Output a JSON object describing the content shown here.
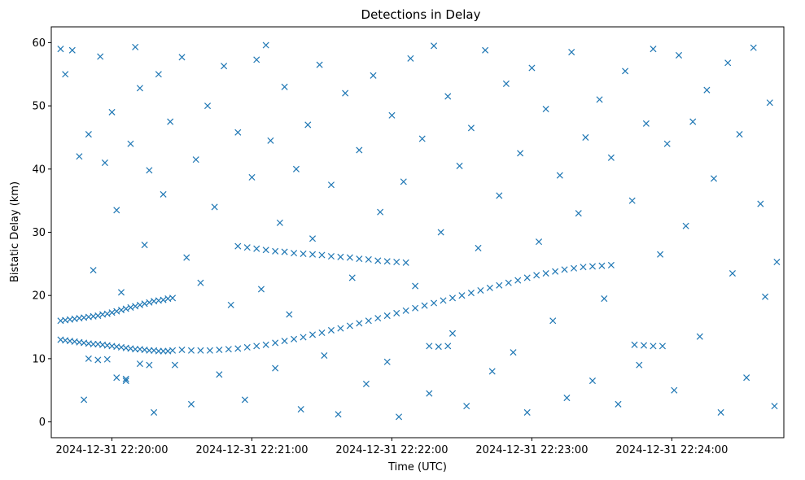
{
  "chart_data": {
    "type": "scatter",
    "title": "Detections in Delay",
    "xlabel": "Time (UTC)",
    "ylabel": "Bistatic Delay (km)",
    "x_unit": "time-of-day",
    "xlim": [
      "22:19:34",
      "22:24:48"
    ],
    "ylim": [
      -2.5,
      62.5
    ],
    "x_ticks": [
      {
        "value": "22:20:00",
        "label": "2024-12-31 22:20:00"
      },
      {
        "value": "22:21:00",
        "label": "2024-12-31 22:21:00"
      },
      {
        "value": "22:22:00",
        "label": "2024-12-31 22:22:00"
      },
      {
        "value": "22:23:00",
        "label": "2024-12-31 22:23:00"
      },
      {
        "value": "22:24:00",
        "label": "2024-12-31 22:24:00"
      }
    ],
    "y_ticks": [
      0,
      10,
      20,
      30,
      40,
      50,
      60
    ],
    "grid": false,
    "legend": "none",
    "marker": "x",
    "color": "#1f77b4",
    "series": [
      {
        "points": [
          [
            "22:19:38",
            13.0
          ],
          [
            "22:19:40",
            12.9
          ],
          [
            "22:19:42",
            12.8
          ],
          [
            "22:19:44",
            12.7
          ],
          [
            "22:19:46",
            12.6
          ],
          [
            "22:19:48",
            12.5
          ],
          [
            "22:19:50",
            12.4
          ],
          [
            "22:19:52",
            12.3
          ],
          [
            "22:19:54",
            12.3
          ],
          [
            "22:19:56",
            12.2
          ],
          [
            "22:19:58",
            12.1
          ],
          [
            "22:20:00",
            12.0
          ],
          [
            "22:20:02",
            11.9
          ],
          [
            "22:20:04",
            11.8
          ],
          [
            "22:20:06",
            11.7
          ],
          [
            "22:20:08",
            11.6
          ],
          [
            "22:20:10",
            11.5
          ],
          [
            "22:20:12",
            11.5
          ],
          [
            "22:20:14",
            11.4
          ],
          [
            "22:20:16",
            11.3
          ],
          [
            "22:20:18",
            11.3
          ],
          [
            "22:20:20",
            11.2
          ],
          [
            "22:20:22",
            11.2
          ],
          [
            "22:20:24",
            11.2
          ],
          [
            "22:20:26",
            11.3
          ],
          [
            "22:19:38",
            16.0
          ],
          [
            "22:19:40",
            16.1
          ],
          [
            "22:19:42",
            16.2
          ],
          [
            "22:19:44",
            16.3
          ],
          [
            "22:19:46",
            16.4
          ],
          [
            "22:19:48",
            16.5
          ],
          [
            "22:19:50",
            16.6
          ],
          [
            "22:19:52",
            16.7
          ],
          [
            "22:19:54",
            16.8
          ],
          [
            "22:19:56",
            17.0
          ],
          [
            "22:19:58",
            17.1
          ],
          [
            "22:20:00",
            17.3
          ],
          [
            "22:20:02",
            17.5
          ],
          [
            "22:20:04",
            17.7
          ],
          [
            "22:20:06",
            17.9
          ],
          [
            "22:20:08",
            18.1
          ],
          [
            "22:20:10",
            18.3
          ],
          [
            "22:20:12",
            18.5
          ],
          [
            "22:20:14",
            18.7
          ],
          [
            "22:20:16",
            18.9
          ],
          [
            "22:20:18",
            19.1
          ],
          [
            "22:20:20",
            19.2
          ],
          [
            "22:20:22",
            19.3
          ],
          [
            "22:20:24",
            19.5
          ],
          [
            "22:20:26",
            19.6
          ],
          [
            "22:20:30",
            11.4
          ],
          [
            "22:20:34",
            11.3
          ],
          [
            "22:20:38",
            11.3
          ],
          [
            "22:20:42",
            11.3
          ],
          [
            "22:20:46",
            11.4
          ],
          [
            "22:20:50",
            11.5
          ],
          [
            "22:20:54",
            11.6
          ],
          [
            "22:20:58",
            11.8
          ],
          [
            "22:21:02",
            12.0
          ],
          [
            "22:21:06",
            12.2
          ],
          [
            "22:21:10",
            12.5
          ],
          [
            "22:21:14",
            12.8
          ],
          [
            "22:21:18",
            13.1
          ],
          [
            "22:21:22",
            13.4
          ],
          [
            "22:21:26",
            13.8
          ],
          [
            "22:21:30",
            14.1
          ],
          [
            "22:21:34",
            14.5
          ],
          [
            "22:21:38",
            14.8
          ],
          [
            "22:21:42",
            15.2
          ],
          [
            "22:21:46",
            15.6
          ],
          [
            "22:21:50",
            16.0
          ],
          [
            "22:21:54",
            16.4
          ],
          [
            "22:21:58",
            16.8
          ],
          [
            "22:22:02",
            17.2
          ],
          [
            "22:22:06",
            17.6
          ],
          [
            "22:22:10",
            18.0
          ],
          [
            "22:22:14",
            18.4
          ],
          [
            "22:22:18",
            18.8
          ],
          [
            "22:22:22",
            19.2
          ],
          [
            "22:22:26",
            19.6
          ],
          [
            "22:22:30",
            20.0
          ],
          [
            "22:22:34",
            20.4
          ],
          [
            "22:22:38",
            20.8
          ],
          [
            "22:22:42",
            21.2
          ],
          [
            "22:22:46",
            21.6
          ],
          [
            "22:22:50",
            22.0
          ],
          [
            "22:22:54",
            22.4
          ],
          [
            "22:22:58",
            22.8
          ],
          [
            "22:23:02",
            23.2
          ],
          [
            "22:23:06",
            23.5
          ],
          [
            "22:23:10",
            23.8
          ],
          [
            "22:23:14",
            24.1
          ],
          [
            "22:23:18",
            24.3
          ],
          [
            "22:23:22",
            24.5
          ],
          [
            "22:23:26",
            24.6
          ],
          [
            "22:23:30",
            24.7
          ],
          [
            "22:23:34",
            24.8
          ],
          [
            "22:20:54",
            27.8
          ],
          [
            "22:20:58",
            27.6
          ],
          [
            "22:21:02",
            27.4
          ],
          [
            "22:21:06",
            27.2
          ],
          [
            "22:21:10",
            27.0
          ],
          [
            "22:21:14",
            26.9
          ],
          [
            "22:21:18",
            26.7
          ],
          [
            "22:21:22",
            26.6
          ],
          [
            "22:21:26",
            26.5
          ],
          [
            "22:21:30",
            26.4
          ],
          [
            "22:21:34",
            26.2
          ],
          [
            "22:21:38",
            26.1
          ],
          [
            "22:21:42",
            26.0
          ],
          [
            "22:21:46",
            25.8
          ],
          [
            "22:21:50",
            25.7
          ],
          [
            "22:21:54",
            25.5
          ],
          [
            "22:21:58",
            25.4
          ],
          [
            "22:22:02",
            25.3
          ],
          [
            "22:22:06",
            25.2
          ],
          [
            "22:19:50",
            10.0
          ],
          [
            "22:19:54",
            9.8
          ],
          [
            "22:19:58",
            9.9
          ],
          [
            "22:20:02",
            7.0
          ],
          [
            "22:20:06",
            6.5
          ],
          [
            "22:20:12",
            9.2
          ],
          [
            "22:20:16",
            9.0
          ],
          [
            "22:22:16",
            12.0
          ],
          [
            "22:22:20",
            11.9
          ],
          [
            "22:22:24",
            12.0
          ],
          [
            "22:23:44",
            12.2
          ],
          [
            "22:23:48",
            12.1
          ],
          [
            "22:23:52",
            12.0
          ],
          [
            "22:23:56",
            12.0
          ],
          [
            "22:19:38",
            59.0
          ],
          [
            "22:19:40",
            55.0
          ],
          [
            "22:19:43",
            58.8
          ],
          [
            "22:19:46",
            42.0
          ],
          [
            "22:19:48",
            3.5
          ],
          [
            "22:19:50",
            45.5
          ],
          [
            "22:19:52",
            24.0
          ],
          [
            "22:19:55",
            57.8
          ],
          [
            "22:19:57",
            41.0
          ],
          [
            "22:20:00",
            49.0
          ],
          [
            "22:20:02",
            33.5
          ],
          [
            "22:20:04",
            20.5
          ],
          [
            "22:20:06",
            6.8
          ],
          [
            "22:20:08",
            44.0
          ],
          [
            "22:20:10",
            59.3
          ],
          [
            "22:20:12",
            52.8
          ],
          [
            "22:20:14",
            28.0
          ],
          [
            "22:20:16",
            39.8
          ],
          [
            "22:20:18",
            1.5
          ],
          [
            "22:20:20",
            55.0
          ],
          [
            "22:20:22",
            36.0
          ],
          [
            "22:20:25",
            47.5
          ],
          [
            "22:20:27",
            9.0
          ],
          [
            "22:20:30",
            57.7
          ],
          [
            "22:20:32",
            26.0
          ],
          [
            "22:20:34",
            2.8
          ],
          [
            "22:20:36",
            41.5
          ],
          [
            "22:20:38",
            22.0
          ],
          [
            "22:20:41",
            50.0
          ],
          [
            "22:20:44",
            34.0
          ],
          [
            "22:20:46",
            7.5
          ],
          [
            "22:20:48",
            56.3
          ],
          [
            "22:20:51",
            18.5
          ],
          [
            "22:20:54",
            45.8
          ],
          [
            "22:20:57",
            3.5
          ],
          [
            "22:21:00",
            38.7
          ],
          [
            "22:21:02",
            57.3
          ],
          [
            "22:21:04",
            21.0
          ],
          [
            "22:21:06",
            59.6
          ],
          [
            "22:21:08",
            44.5
          ],
          [
            "22:21:10",
            8.5
          ],
          [
            "22:21:12",
            31.5
          ],
          [
            "22:21:14",
            53.0
          ],
          [
            "22:21:16",
            17.0
          ],
          [
            "22:21:19",
            40.0
          ],
          [
            "22:21:21",
            2.0
          ],
          [
            "22:21:24",
            47.0
          ],
          [
            "22:21:26",
            29.0
          ],
          [
            "22:21:29",
            56.5
          ],
          [
            "22:21:31",
            10.5
          ],
          [
            "22:21:34",
            37.5
          ],
          [
            "22:21:37",
            1.2
          ],
          [
            "22:21:40",
            52.0
          ],
          [
            "22:21:43",
            22.8
          ],
          [
            "22:21:46",
            43.0
          ],
          [
            "22:21:49",
            6.0
          ],
          [
            "22:21:52",
            54.8
          ],
          [
            "22:21:55",
            33.2
          ],
          [
            "22:21:58",
            9.5
          ],
          [
            "22:22:00",
            48.5
          ],
          [
            "22:22:03",
            0.8
          ],
          [
            "22:22:05",
            38.0
          ],
          [
            "22:22:08",
            57.5
          ],
          [
            "22:22:10",
            21.5
          ],
          [
            "22:22:13",
            44.8
          ],
          [
            "22:22:16",
            4.5
          ],
          [
            "22:22:18",
            59.5
          ],
          [
            "22:22:21",
            30.0
          ],
          [
            "22:22:24",
            51.5
          ],
          [
            "22:22:26",
            14.0
          ],
          [
            "22:22:29",
            40.5
          ],
          [
            "22:22:32",
            2.5
          ],
          [
            "22:22:34",
            46.5
          ],
          [
            "22:22:37",
            27.5
          ],
          [
            "22:22:40",
            58.8
          ],
          [
            "22:22:43",
            8.0
          ],
          [
            "22:22:46",
            35.8
          ],
          [
            "22:22:49",
            53.5
          ],
          [
            "22:22:52",
            11.0
          ],
          [
            "22:22:55",
            42.5
          ],
          [
            "22:22:58",
            1.5
          ],
          [
            "22:23:00",
            56.0
          ],
          [
            "22:23:03",
            28.5
          ],
          [
            "22:23:06",
            49.5
          ],
          [
            "22:23:09",
            16.0
          ],
          [
            "22:23:12",
            39.0
          ],
          [
            "22:23:15",
            3.8
          ],
          [
            "22:23:17",
            58.5
          ],
          [
            "22:23:20",
            33.0
          ],
          [
            "22:23:23",
            45.0
          ],
          [
            "22:23:26",
            6.5
          ],
          [
            "22:23:29",
            51.0
          ],
          [
            "22:23:31",
            19.5
          ],
          [
            "22:23:34",
            41.8
          ],
          [
            "22:23:37",
            2.8
          ],
          [
            "22:23:40",
            55.5
          ],
          [
            "22:23:43",
            35.0
          ],
          [
            "22:23:46",
            9.0
          ],
          [
            "22:23:49",
            47.2
          ],
          [
            "22:23:52",
            59.0
          ],
          [
            "22:23:55",
            26.5
          ],
          [
            "22:23:58",
            44.0
          ],
          [
            "22:24:01",
            5.0
          ],
          [
            "22:24:03",
            58.0
          ],
          [
            "22:24:06",
            31.0
          ],
          [
            "22:24:09",
            47.5
          ],
          [
            "22:24:12",
            13.5
          ],
          [
            "22:24:15",
            52.5
          ],
          [
            "22:24:18",
            38.5
          ],
          [
            "22:24:21",
            1.5
          ],
          [
            "22:24:24",
            56.8
          ],
          [
            "22:24:26",
            23.5
          ],
          [
            "22:24:29",
            45.5
          ],
          [
            "22:24:32",
            7.0
          ],
          [
            "22:24:35",
            59.2
          ],
          [
            "22:24:38",
            34.5
          ],
          [
            "22:24:40",
            19.8
          ],
          [
            "22:24:42",
            50.5
          ],
          [
            "22:24:44",
            2.5
          ],
          [
            "22:24:45",
            25.3
          ]
        ]
      }
    ]
  }
}
